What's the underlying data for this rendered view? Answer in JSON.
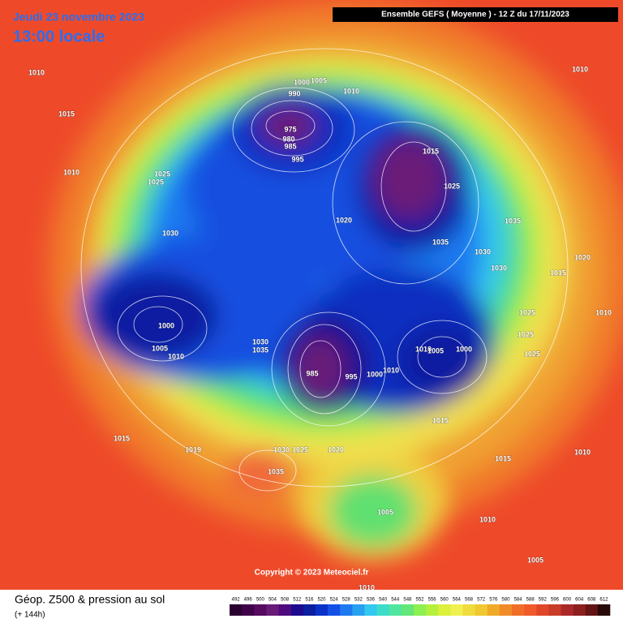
{
  "header": {
    "date": "Jeudi 23 novembre 2023",
    "time": "13:00 locale",
    "run": "Ensemble GEFS  ( Moyenne )  -  12 Z du 17/11/2023"
  },
  "isobar_labels": [
    1010,
    1015,
    1010,
    1005,
    1000,
    990,
    975,
    980,
    985,
    995,
    1010,
    1025,
    1025,
    1030,
    1020,
    1015,
    1025,
    1035,
    1035,
    1030,
    1030,
    1020,
    1015,
    1000,
    1005,
    1010,
    1030,
    1035,
    985,
    995,
    1000,
    1010,
    1010,
    1005,
    1000,
    1025,
    1025,
    1025,
    1015,
    1015,
    1019,
    1030,
    1025,
    1020,
    1035,
    1015,
    1010,
    1005,
    1010,
    1005,
    1010,
    1010,
    1010
  ],
  "copyright": "Copyright © 2023 Meteociel.fr",
  "footer": {
    "title": "Géop. Z500 & pression au sol",
    "lead": "(+ 144h)"
  },
  "scale": {
    "values": [
      492,
      496,
      500,
      504,
      508,
      512,
      516,
      520,
      524,
      528,
      532,
      536,
      540,
      544,
      548,
      552,
      556,
      560,
      564,
      568,
      572,
      576,
      580,
      584,
      588,
      592,
      596,
      600,
      604,
      608,
      612
    ],
    "colors": [
      "#2a0030",
      "#40004a",
      "#560a60",
      "#6a1a78",
      "#500a80",
      "#1e0a8c",
      "#0a1ea0",
      "#0a32c8",
      "#1450e6",
      "#1e78f0",
      "#28a0f0",
      "#32c8f0",
      "#3cdcc8",
      "#50e6a0",
      "#64e678",
      "#8cf050",
      "#b4f03c",
      "#dcf03c",
      "#f0f050",
      "#f0dc3c",
      "#f0c832",
      "#f0aa28",
      "#f08c28",
      "#f06e28",
      "#f05a28",
      "#e04628",
      "#c83c28",
      "#aa2828",
      "#8c1e1e",
      "#641414",
      "#280a0a"
    ]
  }
}
